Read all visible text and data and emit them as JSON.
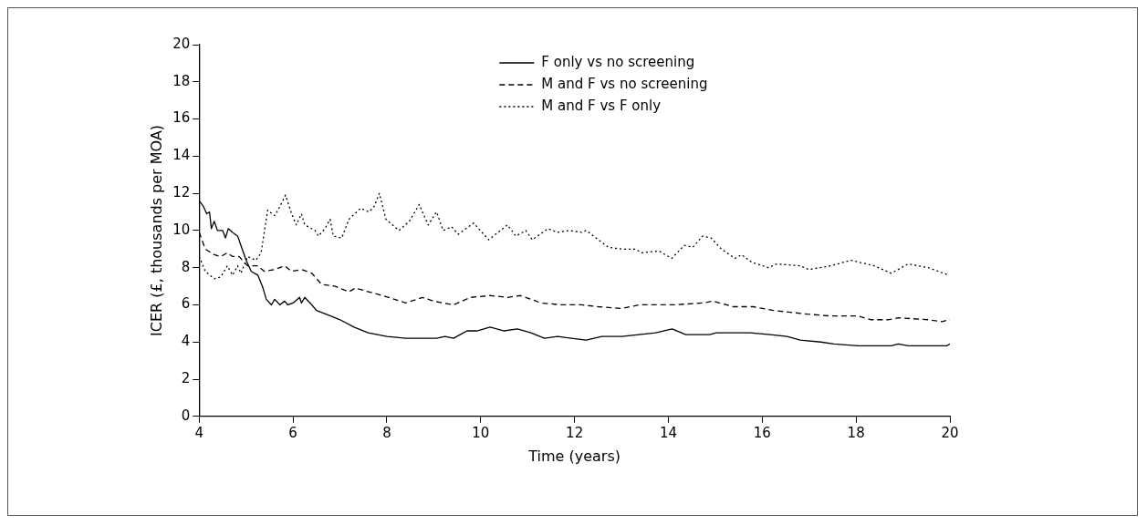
{
  "chart_data": {
    "type": "line",
    "xlabel": "Time (years)",
    "ylabel": "ICER (£, thousands per MOA)",
    "xlim": [
      4,
      20
    ],
    "ylim": [
      0,
      20
    ],
    "xticks": [
      4,
      6,
      8,
      10,
      12,
      14,
      16,
      18,
      20
    ],
    "yticks": [
      0,
      2,
      4,
      6,
      8,
      10,
      12,
      14,
      16,
      18,
      20
    ],
    "grid": false,
    "legend": "top right",
    "marker": "none",
    "series": [
      {
        "name": "F only vs no screening",
        "color": "#000000",
        "line_style": "solid",
        "x": [
          4.0,
          4.09,
          4.16,
          4.22,
          4.26,
          4.32,
          4.39,
          4.5,
          4.56,
          4.62,
          4.71,
          4.82,
          4.93,
          5.0,
          5.11,
          5.25,
          5.36,
          5.43,
          5.54,
          5.61,
          5.72,
          5.82,
          5.89,
          6.0,
          6.14,
          6.18,
          6.25,
          6.4,
          6.5,
          6.8,
          7.0,
          7.3,
          7.6,
          8.0,
          8.4,
          8.7,
          9.06,
          9.24,
          9.42,
          9.71,
          9.92,
          10.2,
          10.5,
          10.78,
          11.07,
          11.36,
          11.64,
          11.93,
          12.25,
          12.58,
          13.01,
          13.37,
          13.73,
          14.08,
          14.37,
          14.88,
          15.02,
          15.52,
          15.74,
          16.17,
          16.53,
          16.81,
          17.25,
          17.53,
          18.04,
          18.18,
          18.75,
          18.9,
          19.11,
          19.54,
          19.94,
          20.0
        ],
        "values": [
          11.6,
          11.3,
          10.9,
          11.0,
          10.1,
          10.5,
          10.0,
          10.0,
          9.6,
          10.1,
          9.9,
          9.7,
          8.9,
          8.4,
          7.8,
          7.6,
          6.9,
          6.3,
          6.0,
          6.3,
          6.0,
          6.2,
          6.0,
          6.1,
          6.4,
          6.1,
          6.4,
          6.0,
          5.7,
          5.4,
          5.2,
          4.8,
          4.5,
          4.3,
          4.2,
          4.2,
          4.2,
          4.3,
          4.2,
          4.6,
          4.6,
          4.8,
          4.6,
          4.7,
          4.5,
          4.2,
          4.3,
          4.2,
          4.1,
          4.3,
          4.3,
          4.4,
          4.5,
          4.7,
          4.4,
          4.4,
          4.5,
          4.5,
          4.5,
          4.4,
          4.3,
          4.1,
          4.0,
          3.9,
          3.8,
          3.8,
          3.8,
          3.9,
          3.8,
          3.8,
          3.8,
          3.9
        ]
      },
      {
        "name": "M and F vs no screening",
        "color": "#000000",
        "line_style": "dashed",
        "x": [
          4.0,
          4.13,
          4.32,
          4.46,
          4.6,
          4.71,
          4.85,
          5.03,
          5.25,
          5.39,
          5.61,
          5.82,
          5.97,
          6.18,
          6.4,
          6.61,
          6.9,
          7.19,
          7.33,
          7.76,
          8.04,
          8.4,
          8.76,
          8.99,
          9.42,
          9.78,
          10.2,
          10.57,
          10.85,
          11.29,
          11.72,
          12.15,
          12.5,
          13.01,
          13.37,
          13.73,
          14.12,
          14.73,
          14.95,
          15.38,
          15.81,
          16.24,
          16.96,
          17.46,
          18.04,
          18.32,
          18.68,
          18.9,
          19.54,
          19.83,
          20.0
        ],
        "values": [
          9.9,
          9.0,
          8.7,
          8.6,
          8.8,
          8.6,
          8.6,
          8.1,
          8.1,
          7.8,
          7.9,
          8.1,
          7.8,
          7.9,
          7.7,
          7.1,
          7.0,
          6.7,
          6.9,
          6.6,
          6.4,
          6.1,
          6.4,
          6.2,
          6.0,
          6.4,
          6.5,
          6.4,
          6.5,
          6.1,
          6.0,
          6.0,
          5.9,
          5.8,
          6.0,
          6.0,
          6.0,
          6.1,
          6.2,
          5.9,
          5.9,
          5.7,
          5.5,
          5.4,
          5.4,
          5.2,
          5.2,
          5.3,
          5.2,
          5.1,
          5.2
        ]
      },
      {
        "name": "M and F vs F only",
        "color": "#000000",
        "line_style": "dotted",
        "x": [
          4.0,
          4.13,
          4.32,
          4.46,
          4.6,
          4.71,
          4.82,
          4.89,
          5.03,
          5.21,
          5.32,
          5.46,
          5.61,
          5.68,
          5.84,
          5.97,
          6.07,
          6.18,
          6.25,
          6.47,
          6.54,
          6.68,
          6.79,
          6.86,
          7.04,
          7.19,
          7.44,
          7.62,
          7.73,
          7.84,
          7.98,
          8.26,
          8.48,
          8.69,
          8.88,
          9.06,
          9.2,
          9.38,
          9.52,
          9.85,
          10.17,
          10.57,
          10.75,
          10.96,
          11.1,
          11.43,
          11.64,
          11.89,
          12.15,
          12.25,
          12.72,
          13.01,
          13.29,
          13.44,
          13.8,
          14.07,
          14.34,
          14.52,
          14.73,
          14.91,
          15.13,
          15.42,
          15.56,
          15.77,
          16.13,
          16.31,
          16.81,
          16.99,
          17.46,
          17.89,
          18.39,
          18.75,
          19.11,
          19.54,
          19.97
        ],
        "values": [
          8.6,
          7.8,
          7.4,
          7.5,
          8.1,
          7.6,
          8.1,
          7.7,
          8.6,
          8.4,
          8.8,
          11.1,
          10.8,
          11.1,
          11.9,
          10.9,
          10.3,
          10.9,
          10.3,
          10.0,
          9.7,
          10.1,
          10.6,
          9.7,
          9.6,
          10.6,
          11.2,
          11.0,
          11.3,
          12.0,
          10.6,
          10.0,
          10.5,
          11.4,
          10.3,
          11.0,
          10.0,
          10.2,
          9.8,
          10.4,
          9.5,
          10.3,
          9.7,
          10.0,
          9.5,
          10.1,
          9.9,
          10.0,
          9.9,
          10.0,
          9.1,
          9.0,
          9.0,
          8.8,
          8.9,
          8.5,
          9.2,
          9.1,
          9.7,
          9.6,
          9.0,
          8.5,
          8.7,
          8.3,
          8.0,
          8.2,
          8.1,
          7.9,
          8.1,
          8.4,
          8.1,
          7.7,
          8.2,
          8.0,
          7.6
        ]
      }
    ]
  }
}
